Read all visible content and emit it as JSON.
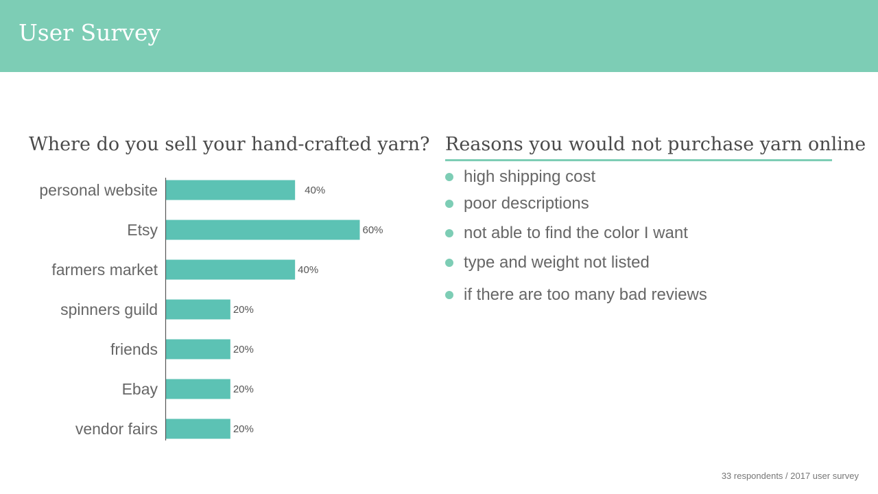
{
  "slide": {
    "title": "User Survey",
    "footnote": "33 respondents / 2017 user survey"
  },
  "colors": {
    "header": "#7dcdb5",
    "bar": "#5cc2b4",
    "accent": "#7dcdb5",
    "axis": "#555555"
  },
  "left_panel": {
    "title": "Where do you sell your hand-crafted yarn?"
  },
  "right_panel": {
    "title": "Reasons you would not purchase yarn online",
    "bullet_icon": "dot-bullet",
    "items": [
      "high shipping cost",
      "poor descriptions",
      "not able to find the color I want",
      "type and weight not listed",
      "if there are too many bad reviews"
    ]
  },
  "chart_data": {
    "type": "bar",
    "orientation": "horizontal",
    "title": "Where do you sell your hand-crafted yarn?",
    "categories": [
      "personal website",
      "Etsy",
      "farmers market",
      "spinners guild",
      "friends",
      "Ebay",
      "vendor fairs"
    ],
    "values": [
      40,
      60,
      40,
      20,
      20,
      20,
      20
    ],
    "value_labels": [
      "40%",
      "60%",
      "40%",
      "20%",
      "20%",
      "20%",
      "20%"
    ],
    "xlim": [
      0,
      60
    ],
    "grid": false,
    "legend": "none"
  }
}
